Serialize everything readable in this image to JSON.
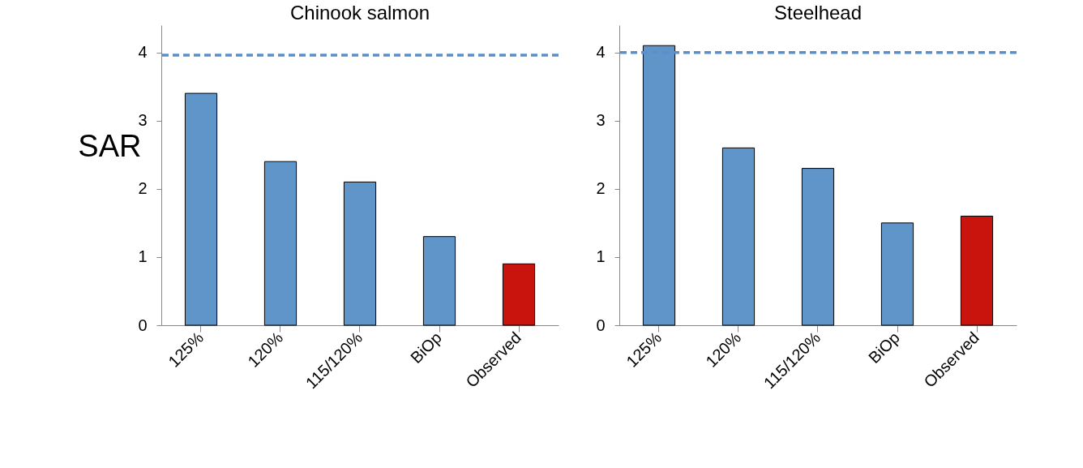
{
  "chart_data": [
    {
      "type": "bar",
      "title": "Chinook salmon",
      "ylabel": "SAR",
      "categories": [
        "125%",
        "120%",
        "115/120%",
        "BiOp",
        "Observed"
      ],
      "values": [
        3.4,
        2.4,
        2.1,
        1.3,
        0.9
      ],
      "colors": [
        "#6095c9",
        "#6095c9",
        "#6095c9",
        "#6095c9",
        "#c8140c"
      ],
      "ylim": [
        0,
        4.4
      ],
      "yticks": [
        0,
        1,
        2,
        3,
        4
      ],
      "grid": false,
      "ref_lines": [
        {
          "axis": "y",
          "value": 3.96,
          "color": "#5b8fcc",
          "line_style": "dashed"
        }
      ]
    },
    {
      "type": "bar",
      "title": "Steelhead",
      "categories": [
        "125%",
        "120%",
        "115/120%",
        "BiOp",
        "Observed"
      ],
      "values": [
        4.1,
        2.6,
        2.3,
        1.5,
        1.6
      ],
      "colors": [
        "#6095c9",
        "#6095c9",
        "#6095c9",
        "#6095c9",
        "#c8140c"
      ],
      "ylim": [
        0,
        4.4
      ],
      "yticks": [
        0,
        1,
        2,
        3,
        4
      ],
      "grid": false,
      "ref_lines": [
        {
          "axis": "y",
          "value": 4.0,
          "color": "#5b8fcc",
          "line_style": "dashed"
        }
      ]
    }
  ]
}
